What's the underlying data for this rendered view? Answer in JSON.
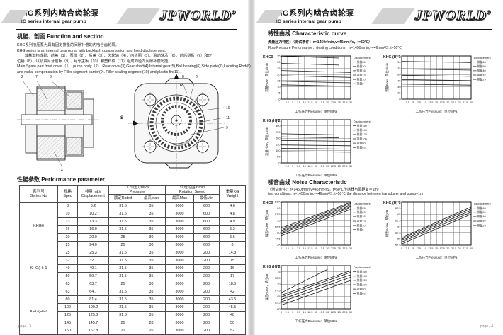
{
  "header": {
    "title_cn": "KHG系列内啮合齿轮泵",
    "title_en": "KHG series internal gear pump",
    "logo": "JPWORLD",
    "logo_reg": "®"
  },
  "page_left": {
    "section1_heading": "机能、剖面 Function and section",
    "paragraph": [
      "KHG系列液压泵为具有固定排量的间隙补偿的内啮合齿轮泵。",
      "KHG series is an internal gear pump with backlash compensation and fixed displacement.",
      "　　其基本构成是：前盖（1）、泵体（2）、后盖（3）、齿轮轴（4）、内齿圈（5）、滑动轴承（6）、前后侧板（7）和定",
      "位销（8）、以及由月牙前板（9）、月牙主板（10）和塑料件（11）组成的径向间隙补偿功能。",
      "Main Spare part front cover（1） pump body（2） Rear cover(3),Gear shaft(4),Internal gear(5),Ball bearing(6),Side plate(7),Locating Rod(8),",
      "and radial compensation by Filler segment carrier(9).  Filler sealing segment(10)  and plastic fin(11)."
    ],
    "diagram": {
      "callouts_section": [
        "2",
        "7",
        "3",
        "4"
      ],
      "callouts_front": [
        "8",
        "6",
        "10",
        "11",
        "9"
      ],
      "port_top": "P",
      "port_left": "S"
    },
    "section2_heading": "性能参数 Performance parameter",
    "table": {
      "headers": {
        "series": [
          "系列号",
          "Series No"
        ],
        "spec": [
          "规格",
          "Spec"
        ],
        "displacement": [
          "排量 mL/r",
          "Displacement"
        ],
        "pressure": [
          "工作压力MPa",
          "Pressure"
        ],
        "rated": [
          "额定Rated"
        ],
        "max": [
          "最高Max"
        ],
        "speed": [
          "转速范围 r/min",
          "Rotation Speed"
        ],
        "speed_max": [
          "最高Max"
        ],
        "speed_min": [
          "最低Min"
        ],
        "weight": [
          "重量KG",
          "Weight"
        ]
      },
      "groups": [
        {
          "name": "KHG0",
          "rows": [
            [
              "8",
              "8.2",
              "31.5",
              "35",
              "3000",
              "600",
              "4.6"
            ],
            [
              "10",
              "10.2",
              "31.5",
              "35",
              "3000",
              "600",
              "4.8"
            ],
            [
              "13",
              "13.3",
              "31.5",
              "35",
              "3000",
              "600",
              "4.9"
            ],
            [
              "16",
              "16.0",
              "31.5",
              "35",
              "3000",
              "600",
              "5.2"
            ],
            [
              "20",
              "20.0",
              "25",
              "30",
              "3000",
              "600",
              "5.6"
            ],
            [
              "25",
              "24.0",
              "25",
              "30",
              "3000",
              "600",
              "6"
            ]
          ]
        },
        {
          "name": "KHG(H)-1",
          "rows": [
            [
              "25",
              "25.3",
              "31.5",
              "35",
              "3000",
              "200",
              "14.3"
            ],
            [
              "32",
              "32.7",
              "31.5",
              "35",
              "3000",
              "200",
              "15"
            ],
            [
              "40",
              "40.1",
              "31.5",
              "35",
              "3000",
              "200",
              "16"
            ],
            [
              "50",
              "50.7",
              "31.5",
              "35",
              "3000",
              "200",
              "17"
            ],
            [
              "63",
              "63.7",
              "25",
              "30",
              "3000",
              "200",
              "18.5"
            ]
          ]
        },
        {
          "name": "KHG(H)-2",
          "rows": [
            [
              "63",
              "64.7",
              "31.5",
              "35",
              "3000",
              "200",
              "42"
            ],
            [
              "80",
              "81.4",
              "31.5",
              "35",
              "3000",
              "200",
              "43.5"
            ],
            [
              "100",
              "100.2",
              "31.5",
              "35",
              "3000",
              "200",
              "45.5"
            ],
            [
              "125",
              "125.3",
              "31.5",
              "35",
              "3000",
              "200",
              "48"
            ],
            [
              "145",
              "145.7",
              "25",
              "28",
              "3000",
              "200",
              "50"
            ],
            [
              "160",
              "162.8",
              "21",
              "26",
              "3000",
              "200",
              "52"
            ]
          ]
        }
      ]
    },
    "footer": "page / 3"
  },
  "page_right": {
    "section_heading": "特性曲线 Characteristic  curve",
    "flow_cn": "流量压力特性：（测试条件：n=1450r/min,v=46mm²/s，t=50℃）",
    "flow_en": "Flow  Pressure  Performance：(testing conditions：n=1450r/min,v=46mm²/S.  t=50℃)",
    "noise_heading": "噪音曲线 Noise Characteristic",
    "noise_cn": "（测试条件：n=1450r/min,v=46mm²/S，t=50℃传感器与泵距离＝1m）",
    "noise_en": "test conditions:  n=1450r/min,v=46mm²/S.  t=50℃  the  distance between transducer and pump=1m",
    "footer": "page / 4"
  },
  "chart_data": [
    {
      "type": "line",
      "title": "KHG0",
      "xlabel": "工作压力Pressure：单位MPa",
      "ylabel": "流量Flow，单位L/min",
      "legend_title": "Displacement",
      "xlim": [
        0,
        30
      ],
      "ylim": [
        0,
        35
      ],
      "xticks": [
        2.5,
        5,
        7.5,
        10,
        12.5,
        15,
        17.5,
        20,
        22.5,
        25,
        27.5,
        30
      ],
      "yticks": [
        0,
        5,
        10,
        15,
        20,
        25,
        30,
        35
      ],
      "series": [
        {
          "name": "排量25",
          "points": [
            [
              0,
              34.8
            ],
            [
              25,
              33.3
            ]
          ]
        },
        {
          "name": "排量20",
          "points": [
            [
              0,
              29.0
            ],
            [
              25,
              27.6
            ]
          ]
        },
        {
          "name": "排量16",
          "points": [
            [
              0,
              23.2
            ],
            [
              30,
              21.6
            ]
          ]
        },
        {
          "name": "排量13",
          "points": [
            [
              0,
              19.0
            ],
            [
              30,
              17.6
            ]
          ]
        },
        {
          "name": "排量10",
          "points": [
            [
              0,
              14.5
            ],
            [
              30,
              13.2
            ]
          ]
        },
        {
          "name": "排量8",
          "points": [
            [
              0,
              11.6
            ],
            [
              30,
              10.4
            ]
          ]
        }
      ]
    },
    {
      "type": "line",
      "title": "KHG (H) 1",
      "xlabel": "工作压力Pressure：单位MPa",
      "ylabel": "流量Flow，单位L/min",
      "legend_title": "Displacement",
      "xlim": [
        0,
        30
      ],
      "ylim": [
        0,
        105
      ],
      "xticks": [
        2.5,
        5,
        7.5,
        10,
        12.5,
        15,
        17.5,
        20,
        22.5,
        25,
        27.5,
        30
      ],
      "yticks": [
        0,
        15,
        30,
        45,
        60,
        75,
        90,
        105
      ],
      "series": [
        {
          "name": "排量63",
          "points": [
            [
              0,
              92
            ],
            [
              30,
              89
            ]
          ]
        },
        {
          "name": "排量50",
          "points": [
            [
              0,
              73.5
            ],
            [
              30,
              70.5
            ]
          ]
        },
        {
          "name": "排量40",
          "points": [
            [
              0,
              58
            ],
            [
              30,
              55.5
            ]
          ]
        },
        {
          "name": "排量32",
          "points": [
            [
              0,
              47.5
            ],
            [
              30,
              45
            ]
          ]
        },
        {
          "name": "排量25",
          "points": [
            [
              0,
              36.5
            ],
            [
              30,
              34
            ]
          ]
        }
      ]
    },
    {
      "type": "line",
      "title": "KHG (H) 2",
      "xlabel": "工作压力Pressure：单位MPa",
      "ylabel": "流量Flow，单位L/min",
      "legend_title": "Displacement",
      "xlim": [
        0,
        30
      ],
      "ylim": [
        0,
        350
      ],
      "xticks": [
        2.5,
        5,
        7.5,
        10,
        12.5,
        15,
        17.5,
        20,
        22.5,
        25,
        27.5,
        30
      ],
      "yticks": [
        0,
        50,
        100,
        150,
        200,
        250,
        300,
        350
      ],
      "series": [
        {
          "name": "排量160",
          "points": [
            [
              0,
              236
            ],
            [
              22.5,
              228
            ]
          ]
        },
        {
          "name": "排量145",
          "points": [
            [
              0,
              211
            ],
            [
              25,
              203
            ]
          ]
        },
        {
          "name": "排量125",
          "points": [
            [
              0,
              182
            ],
            [
              30,
              175
            ]
          ]
        },
        {
          "name": "排量100",
          "points": [
            [
              0,
              145
            ],
            [
              30,
              139
            ]
          ]
        },
        {
          "name": "排量80",
          "points": [
            [
              0,
              118
            ],
            [
              30,
              112
            ]
          ]
        },
        {
          "name": "排量63",
          "points": [
            [
              0,
              92
            ],
            [
              30,
              87
            ]
          ]
        }
      ]
    },
    {
      "type": "line",
      "title": "KHG0",
      "xlabel": "工作压力Pressure：单位MPa",
      "ylabel": "噪音Noise，单位dB",
      "legend_title": "Displacement",
      "xlim": [
        0,
        30
      ],
      "ylim": [
        45,
        62.5
      ],
      "xticks": [
        0,
        2.5,
        5,
        7.5,
        10,
        12.5,
        15,
        17.5,
        20,
        22.5,
        25,
        27.5,
        30
      ],
      "yticks": [
        45,
        47.5,
        50,
        52.5,
        55,
        57.5,
        60,
        62.5
      ],
      "series": [
        {
          "name": "排量25",
          "points": [
            [
              0,
              52
            ],
            [
              30,
              62.3
            ]
          ]
        },
        {
          "name": "排量20",
          "points": [
            [
              0,
              51.3
            ],
            [
              30,
              61.8
            ]
          ]
        },
        {
          "name": "排量16",
          "points": [
            [
              0,
              50.7
            ],
            [
              30,
              61.2
            ]
          ]
        },
        {
          "name": "排量13",
          "points": [
            [
              0,
              50.2
            ],
            [
              30,
              60.7
            ]
          ]
        },
        {
          "name": "排量10",
          "points": [
            [
              0,
              49.6
            ],
            [
              30,
              60.2
            ]
          ]
        },
        {
          "name": "排量8",
          "points": [
            [
              0,
              48.8
            ],
            [
              30,
              59.5
            ]
          ]
        }
      ]
    },
    {
      "type": "line",
      "title": "KHG (H) 1",
      "xlabel": "工作压力Pressure：单位MPa",
      "ylabel": "噪音Noise，单位dB",
      "legend_title": "Displacement",
      "xlim": [
        0,
        30
      ],
      "ylim": [
        52.5,
        70
      ],
      "xticks": [
        0,
        2.5,
        5,
        7.5,
        10,
        12.5,
        15,
        17.5,
        20,
        22.5,
        25,
        27.5,
        30
      ],
      "yticks": [
        52.5,
        55,
        57.5,
        60,
        62.5,
        65,
        67.5,
        70
      ],
      "series": [
        {
          "name": "排量63",
          "points": [
            [
              0,
              55.5
            ],
            [
              30,
              68
            ]
          ]
        },
        {
          "name": "排量50",
          "points": [
            [
              0,
              55
            ],
            [
              30,
              67.3
            ]
          ]
        },
        {
          "name": "排量40",
          "points": [
            [
              0,
              54.4
            ],
            [
              30,
              66.6
            ]
          ]
        },
        {
          "name": "排量32",
          "points": [
            [
              0,
              53.8
            ],
            [
              30,
              65.8
            ]
          ]
        },
        {
          "name": "排量25",
          "points": [
            [
              0,
              53
            ],
            [
              30,
              65
            ]
          ]
        }
      ]
    },
    {
      "type": "line",
      "title": "KHG (H) 2",
      "xlabel": "工作压力Pressure：单位MPa",
      "ylabel": "噪音Noise，单位dB",
      "legend_title": "Displacement",
      "xlim": [
        0,
        30
      ],
      "ylim": [
        60,
        77.5
      ],
      "xticks": [
        0,
        2.5,
        5,
        7.5,
        10,
        12.5,
        15,
        17.5,
        20,
        22.5,
        25,
        27.5,
        30
      ],
      "yticks": [
        60,
        62.5,
        65,
        67.5,
        70,
        72.5,
        75,
        77.5
      ],
      "series": [
        {
          "name": "排量160",
          "points": [
            [
              0,
              66.5
            ],
            [
              20,
              76
            ]
          ]
        },
        {
          "name": "排量145",
          "points": [
            [
              0,
              65.5
            ],
            [
              30,
              75.5
            ]
          ]
        },
        {
          "name": "排量125",
          "points": [
            [
              0,
              64.8
            ],
            [
              30,
              74.8
            ]
          ]
        },
        {
          "name": "排量100",
          "points": [
            [
              0,
              63.8
            ],
            [
              30,
              73.8
            ]
          ]
        },
        {
          "name": "排量80",
          "points": [
            [
              0,
              62.8
            ],
            [
              30,
              72.8
            ]
          ]
        },
        {
          "name": "排量63",
          "points": [
            [
              0,
              61.5
            ],
            [
              30,
              71.5
            ]
          ]
        }
      ]
    }
  ]
}
